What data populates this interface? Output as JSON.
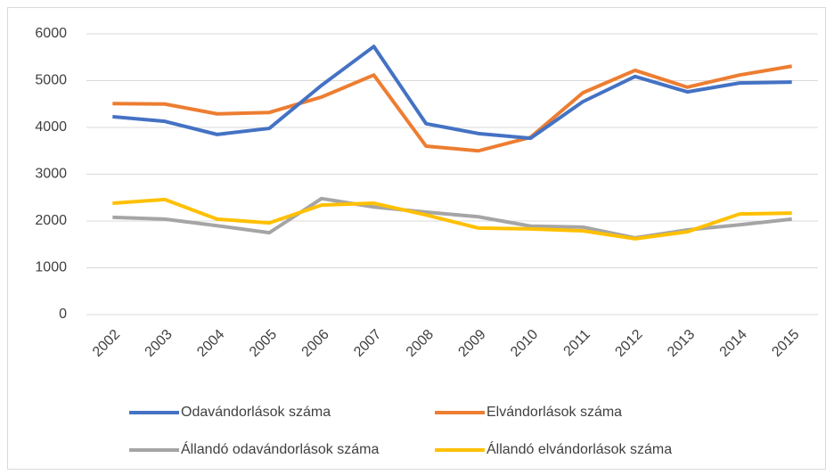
{
  "chart_data": {
    "type": "line",
    "categories": [
      "2002",
      "2003",
      "2004",
      "2005",
      "2006",
      "2007",
      "2008",
      "2009",
      "2010",
      "2011",
      "2012",
      "2013",
      "2014",
      "2015"
    ],
    "series": [
      {
        "name": "Odavándorlások száma",
        "color": "#4472c4",
        "values": [
          4230,
          4130,
          3850,
          3980,
          4900,
          5730,
          4080,
          3870,
          3770,
          4550,
          5090,
          4760,
          4950,
          4970
        ]
      },
      {
        "name": "Elvándorlások száma",
        "color": "#ed7d31",
        "values": [
          4510,
          4500,
          4290,
          4320,
          4650,
          5120,
          3600,
          3500,
          3790,
          4740,
          5220,
          4860,
          5120,
          5310
        ]
      },
      {
        "name": "Állandó odavándorlások száma",
        "color": "#a5a5a5",
        "values": [
          2080,
          2040,
          1900,
          1750,
          2480,
          2300,
          2190,
          2090,
          1890,
          1870,
          1640,
          1810,
          1920,
          2040
        ]
      },
      {
        "name": "Állandó elvándorlások száma",
        "color": "#ffc000",
        "values": [
          2380,
          2460,
          2040,
          1960,
          2340,
          2380,
          2130,
          1850,
          1830,
          1790,
          1620,
          1770,
          2150,
          2170
        ]
      }
    ],
    "ylim": [
      0,
      6000
    ],
    "yticks": [
      0,
      1000,
      2000,
      3000,
      4000,
      5000,
      6000
    ],
    "grid": true,
    "legend": "bottom"
  }
}
